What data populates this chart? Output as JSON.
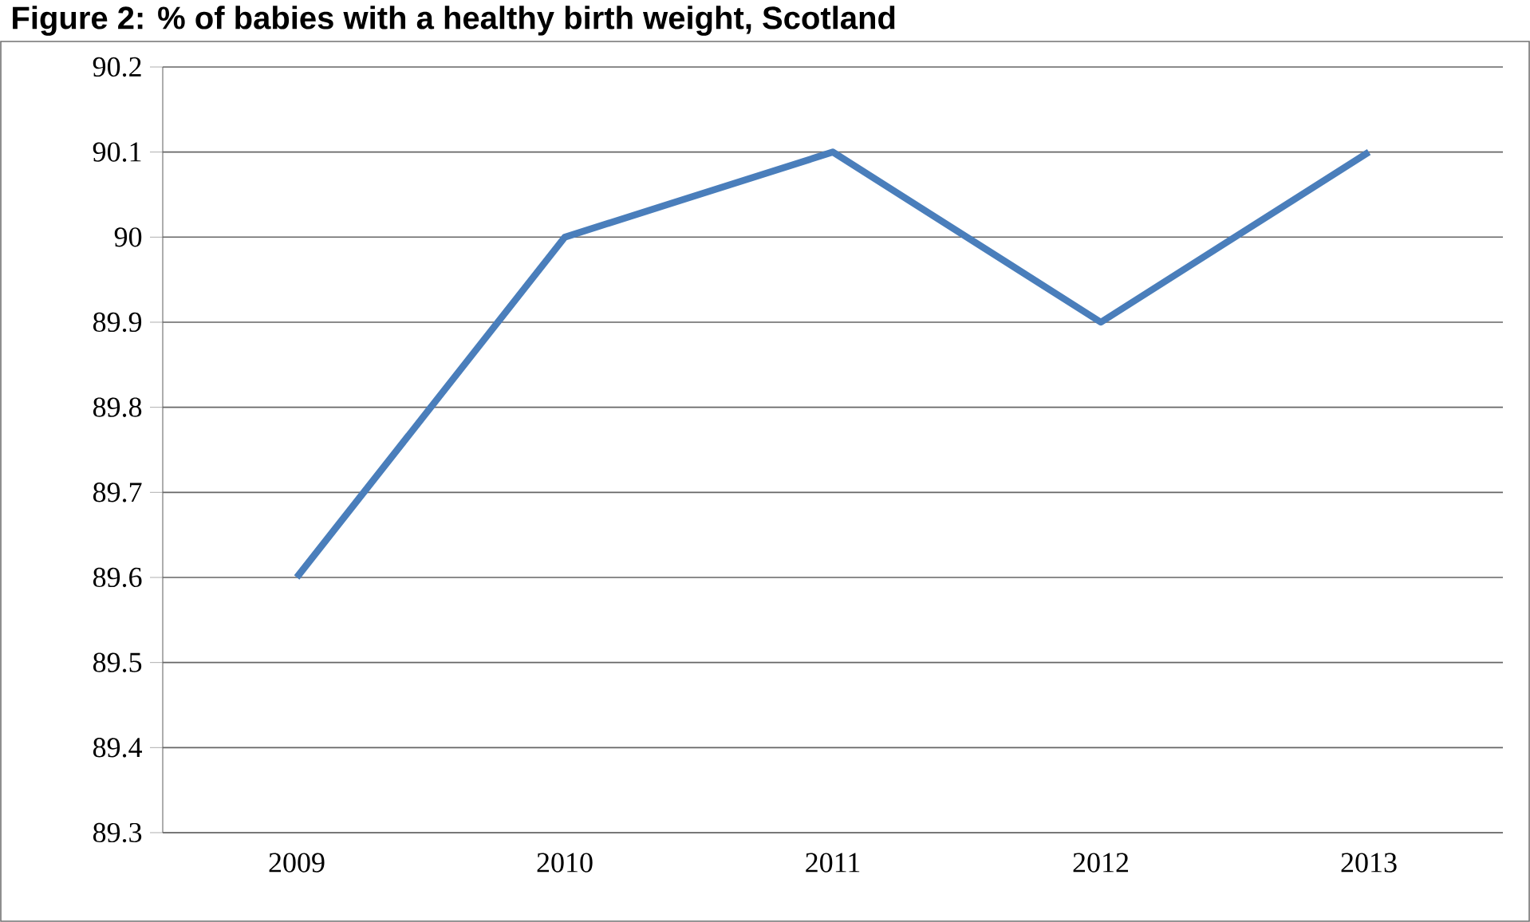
{
  "chart_data": {
    "type": "line",
    "title": "Figure 2: % of babies with a healthy birth weight, Scotland",
    "categories": [
      "2009",
      "2010",
      "2011",
      "2012",
      "2013"
    ],
    "series": [
      {
        "color": "#4a7ebb",
        "values": [
          89.6,
          90.0,
          90.1,
          89.9,
          90.1
        ]
      }
    ],
    "ylim": [
      89.3,
      90.2
    ],
    "yticks": [
      89.3,
      89.4,
      89.5,
      89.6,
      89.7,
      89.8,
      89.9,
      90,
      90.1,
      90.2
    ],
    "grid": "y",
    "marker": "none",
    "line_style": "solid"
  }
}
